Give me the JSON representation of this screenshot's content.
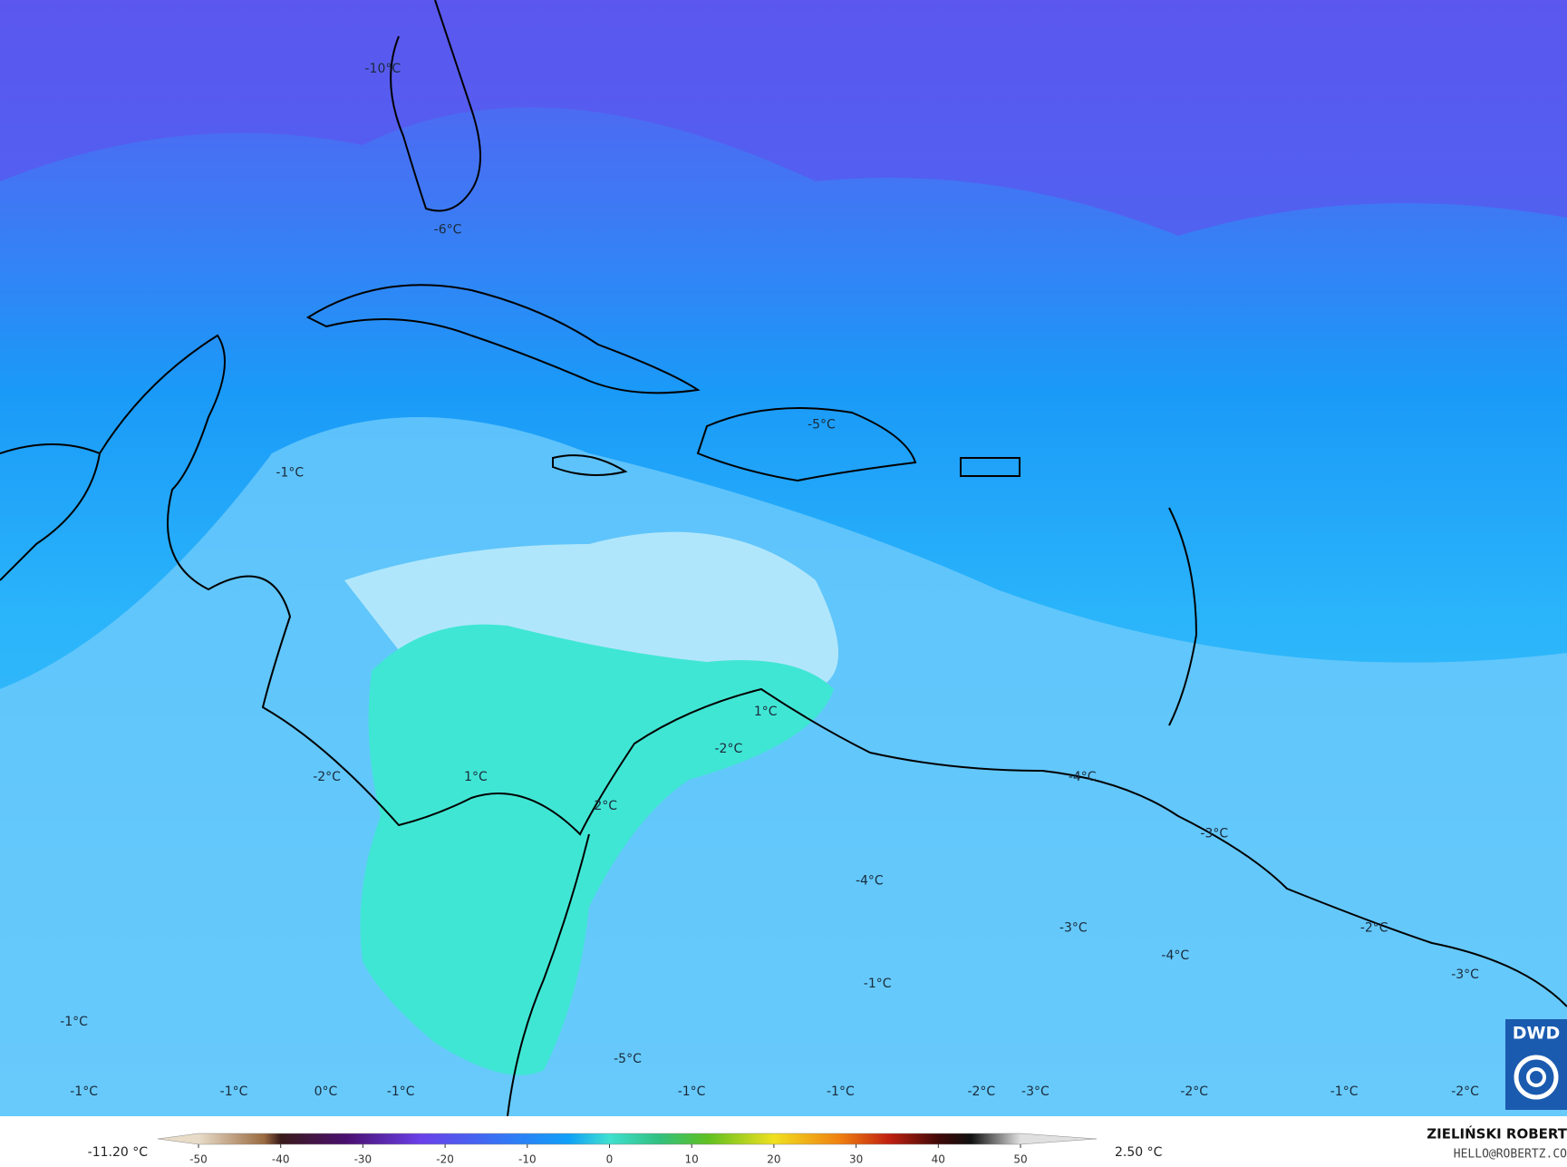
{
  "map": {
    "labels": [
      "-10°C",
      "-6°C",
      "-5°C",
      "-1°C",
      "1°C",
      "-2°C",
      "1°C",
      "-2°C",
      "-4°C",
      "2°C",
      "-3°C",
      "-4°C",
      "-3°C",
      "-4°C",
      "-2°C",
      "-3°C",
      "-1°C",
      "-1°C",
      "-5°C",
      "-1°C",
      "-1°C",
      "0°C",
      "-1°C",
      "-1°C",
      "-1°C",
      "-2°C",
      "-3°C",
      "-2°C",
      "-1°C",
      "-2°C"
    ]
  },
  "colorbar": {
    "min_label": "-11.20 °C",
    "max_label": "2.50 °C",
    "ticks": [
      -50,
      -40,
      -30,
      -20,
      -10,
      0,
      10,
      20,
      30,
      40,
      50
    ]
  },
  "credits": {
    "author": "ZIELIŃSKI ROBERT",
    "email": "HELLO@ROBERTZ.CO"
  },
  "logo": "DWD"
}
